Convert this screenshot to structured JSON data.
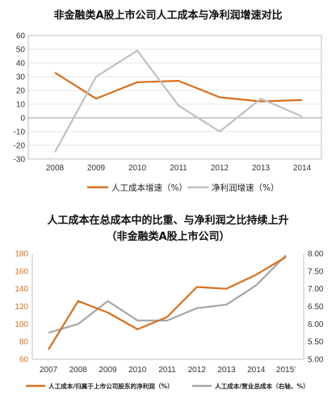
{
  "colors": {
    "orange": "#d5701f",
    "gray": "#c0c0c0",
    "gray2": "#a6a6a6",
    "axis": "#bfbfbf",
    "grid": "#e6e6e6"
  },
  "titles": {
    "chart1": "非金融类A股上市公司人工成本与净利润增速对比",
    "chart2_line1": "人工成本在总成本中的比重、与净利润之比持续上升",
    "chart2_line2": "（非金融类A股上市公司）"
  },
  "chart_data": [
    {
      "type": "line",
      "title": "非金融类A股上市公司人工成本与净利润增速对比",
      "categories": [
        "2008",
        "2009",
        "2010",
        "2011",
        "2012",
        "2013",
        "2014"
      ],
      "ylim": [
        -30,
        60
      ],
      "yticks": [
        60,
        50,
        40,
        30,
        20,
        10,
        0,
        -10,
        -20,
        -30
      ],
      "grid": true,
      "legend": "bottom",
      "series": [
        {
          "name": "人工成本增速（%）",
          "values": [
            33,
            14,
            26,
            27,
            15,
            12,
            13
          ]
        },
        {
          "name": "净利润增速（%）",
          "values": [
            -25,
            30,
            49,
            9,
            -10,
            14,
            1
          ]
        }
      ]
    },
    {
      "type": "line",
      "title": "人工成本在总成本中的比重、与净利润之比持续上升（非金融类A股上市公司）",
      "categories": [
        "2007",
        "2008",
        "2009",
        "2010",
        "2011",
        "2012",
        "2013",
        "2014",
        "2015'"
      ],
      "ylim_left": [
        60,
        180
      ],
      "yticks_left": [
        180,
        160,
        140,
        120,
        100,
        80,
        60
      ],
      "ylim_right": [
        5.0,
        8.0
      ],
      "yticks_right": [
        "8.00",
        "7.50",
        "7.00",
        "6.50",
        "6.00",
        "5.50",
        "5.00"
      ],
      "grid": false,
      "legend": "bottom",
      "series": [
        {
          "name": "人工成本/归属于上市公司股东的净利润（%）",
          "axis": "left",
          "values": [
            71,
            126,
            113,
            94,
            108,
            142,
            140,
            156,
            176
          ]
        },
        {
          "name": "人工成本/营业总成本（右轴，%）",
          "axis": "right",
          "values": [
            5.75,
            6.0,
            6.65,
            6.1,
            6.1,
            6.45,
            6.55,
            7.1,
            7.95
          ]
        }
      ]
    }
  ]
}
